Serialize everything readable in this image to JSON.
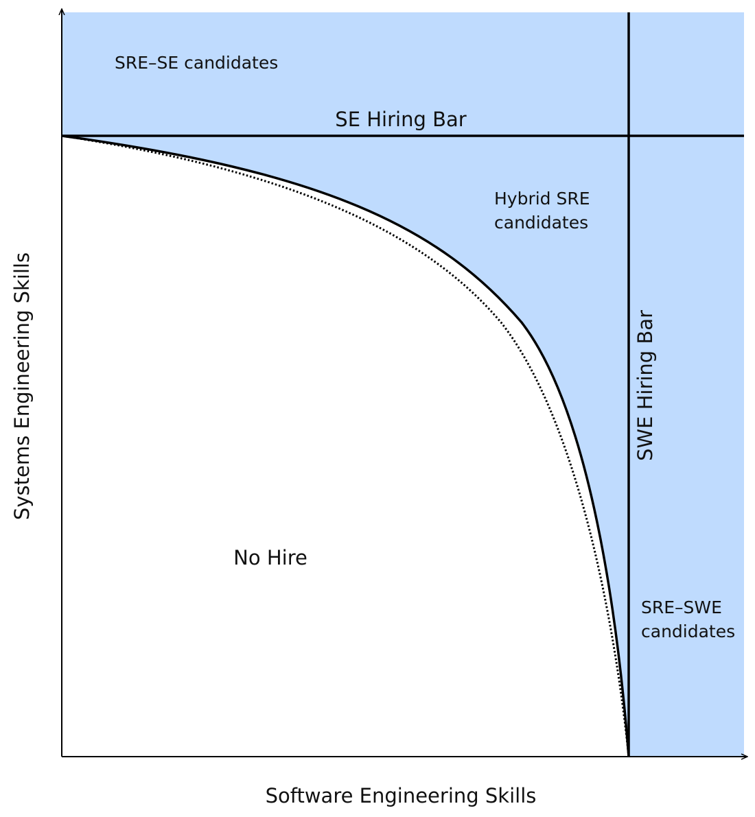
{
  "axes": {
    "x_label": "Software Engineering Skills",
    "y_label": "Systems Engineering Skills"
  },
  "bars": {
    "se_bar": "SE Hiring Bar",
    "swe_bar": "SWE Hiring Bar"
  },
  "regions": {
    "sre_se": "SRE–SE candidates",
    "hybrid_line1": "Hybrid SRE",
    "hybrid_line2": "candidates",
    "sre_swe_line1": "SRE–SWE",
    "sre_swe_line2": "candidates",
    "no_hire": "No Hire"
  },
  "colors": {
    "fill": "#bfdbfe",
    "lines": "#000000"
  }
}
